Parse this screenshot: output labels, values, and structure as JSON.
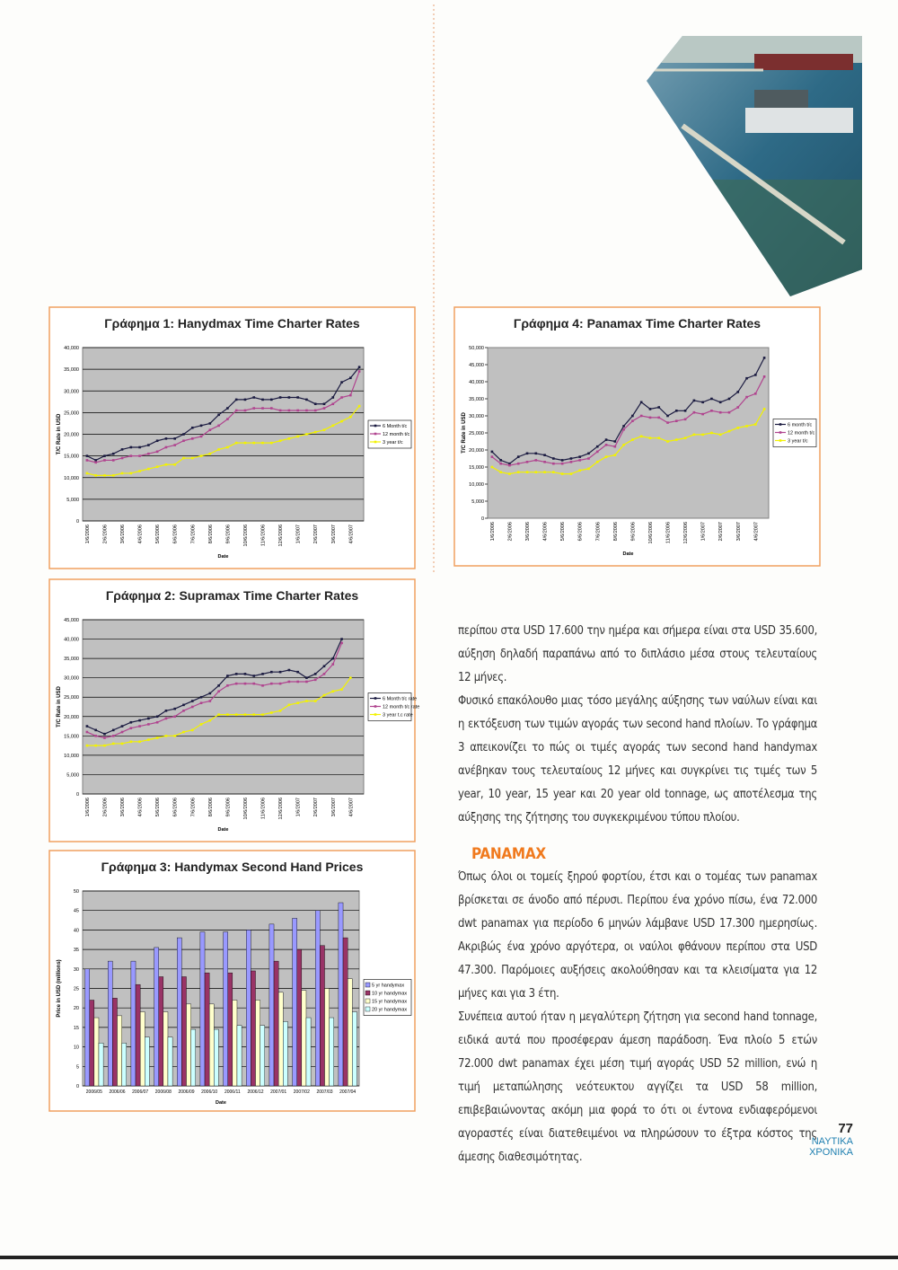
{
  "chart_data": [
    {
      "type": "line",
      "title": "Γράφημα 1: Hanydmax Time Charter Rates",
      "x_label": "Date",
      "y_label": "T/C Rate in USD",
      "legend": "right",
      "grid": true,
      "categories": [
        "1/6/2006",
        null,
        "2/6/2006",
        null,
        "3/6/2006",
        null,
        "4/6/2006",
        null,
        "5/6/2006",
        null,
        "6/6/2006",
        null,
        "7/6/2006",
        null,
        "8/6/2006",
        null,
        "9/6/2006",
        null,
        "10/6/2006",
        null,
        "11/6/2006",
        null,
        "12/6/2006",
        null,
        "1/6/2007",
        null,
        "2/6/2007",
        null,
        "3/6/2007",
        null,
        "4/6/2007",
        null
      ],
      "ylim": [
        0,
        40000
      ],
      "yticks": [
        0,
        {
          "value": 5000,
          "label": "5,000"
        },
        {
          "value": 10000,
          "label": "10,000"
        },
        {
          "value": 15000,
          "label": "15,000"
        },
        {
          "value": 20000,
          "label": "20,000"
        },
        {
          "value": 25000,
          "label": "25,000"
        },
        {
          "value": 30000,
          "label": "30,000"
        },
        {
          "value": 35000,
          "label": "35,000"
        },
        {
          "value": 40000,
          "label": "40,000"
        }
      ],
      "series": [
        {
          "name": "6 Month t/c",
          "color": "#1a1a40",
          "values": [
            15000,
            14000,
            15000,
            15500,
            16500,
            17000,
            17000,
            17500,
            18500,
            19000,
            19000,
            20000,
            21500,
            22000,
            22500,
            24500,
            26000,
            28000,
            28000,
            28500,
            28000,
            28000,
            28500,
            28500,
            28500,
            28000,
            27000,
            27000,
            28500,
            32000,
            33000,
            35500
          ]
        },
        {
          "name": "12 month t/c",
          "color": "#b0448f",
          "values": [
            14000,
            13500,
            14000,
            14000,
            14500,
            15000,
            15000,
            15500,
            16000,
            17000,
            17500,
            18500,
            19000,
            19500,
            21000,
            22000,
            23500,
            25500,
            25500,
            26000,
            26000,
            26000,
            25500,
            25500,
            25500,
            25500,
            25500,
            26000,
            27000,
            28500,
            29000,
            34500
          ]
        },
        {
          "name": "3 year t/c",
          "color": "#f2f200",
          "values": [
            11000,
            10500,
            10500,
            10500,
            11000,
            11000,
            11500,
            12000,
            12500,
            13000,
            13000,
            14500,
            14500,
            15000,
            15500,
            16500,
            17000,
            18000,
            18000,
            18000,
            18000,
            18000,
            18500,
            19000,
            19500,
            20000,
            20500,
            21000,
            22000,
            23000,
            24000,
            26500
          ]
        }
      ]
    },
    {
      "type": "line",
      "title": "Γράφημα 2: Supramax Time Charter Rates",
      "x_label": "Date",
      "y_label": "T/C Rate in USD",
      "legend": "right",
      "grid": true,
      "categories": [
        "1/6/2006",
        null,
        "2/6/2006",
        null,
        "3/6/2006",
        null,
        "4/6/2006",
        null,
        "5/6/2006",
        null,
        "6/6/2006",
        null,
        "7/6/2006",
        null,
        "8/6/2006",
        null,
        "9/6/2006",
        null,
        "10/6/2006",
        null,
        "11/6/2006",
        null,
        "12/6/2006",
        null,
        "1/6/2007",
        null,
        "2/6/2007",
        null,
        "3/6/2007",
        null,
        "4/6/2007",
        null
      ],
      "ylim": [
        0,
        45000
      ],
      "yticks": [
        0,
        {
          "value": 5000,
          "label": "5,000"
        },
        {
          "value": 10000,
          "label": "10,000"
        },
        {
          "value": 15000,
          "label": "15,000"
        },
        {
          "value": 20000,
          "label": "20,000"
        },
        {
          "value": 25000,
          "label": "25,000"
        },
        {
          "value": 30000,
          "label": "30,000"
        },
        {
          "value": 35000,
          "label": "35,000"
        },
        {
          "value": 40000,
          "label": "40,000"
        },
        {
          "value": 45000,
          "label": "45,000"
        }
      ],
      "series": [
        {
          "name": "6 Month t/c rate",
          "color": "#1a1a40",
          "values": [
            17500,
            16500,
            15500,
            16500,
            17500,
            18500,
            19000,
            19500,
            20000,
            21500,
            22000,
            23000,
            24000,
            25000,
            26000,
            28000,
            30500,
            31000,
            31000,
            30500,
            31000,
            31500,
            31500,
            32000,
            31500,
            30000,
            31000,
            33000,
            35000,
            40000,
            null,
            null
          ]
        },
        {
          "name": "12 month t/c rate",
          "color": "#b0448f",
          "values": [
            16000,
            15000,
            14500,
            15000,
            16000,
            17000,
            17500,
            18000,
            18500,
            19500,
            20000,
            21500,
            22500,
            23500,
            24000,
            26500,
            28000,
            28500,
            28500,
            28500,
            28000,
            28500,
            28500,
            29000,
            29000,
            29000,
            29500,
            31000,
            33500,
            39000,
            null,
            null
          ]
        },
        {
          "name": "3 year t.c rate",
          "color": "#f2f200",
          "values": [
            12500,
            12500,
            12500,
            13000,
            13000,
            13500,
            13500,
            14000,
            14500,
            15000,
            15000,
            16000,
            16500,
            18000,
            19000,
            20500,
            20500,
            20500,
            20500,
            20500,
            20500,
            21000,
            21500,
            23000,
            23500,
            24000,
            24000,
            25500,
            26500,
            27000,
            30000,
            null
          ]
        }
      ]
    },
    {
      "type": "bar",
      "title": "Γράφημα 3: Handymax Second Hand Prices",
      "x_label": "Date",
      "y_label": "Price in USD (millions)",
      "legend": "right",
      "grid": true,
      "categories": [
        "2006/05",
        "2006/06",
        "2006/07",
        "2006/08",
        "2006/09",
        "2006/10",
        "2006/11",
        "2006/12",
        "2007/01",
        "2007/02",
        "2007/03",
        "2007/04"
      ],
      "ylim": [
        0,
        50
      ],
      "yticks": [
        0,
        5,
        10,
        15,
        20,
        25,
        30,
        35,
        40,
        45,
        50
      ],
      "series": [
        {
          "name": "5 yr handymax",
          "color": "#9999ff",
          "values": [
            30,
            32,
            32,
            35.5,
            38,
            39.5,
            39.5,
            40,
            41.5,
            43,
            45,
            47
          ]
        },
        {
          "name": "10 yr handymax",
          "color": "#993366",
          "values": [
            22,
            22.5,
            26,
            28,
            28,
            29,
            29,
            29.5,
            32,
            35,
            36,
            38
          ]
        },
        {
          "name": "15 yr handymax",
          "color": "#ffffcc",
          "values": [
            17.5,
            18,
            19,
            19,
            21,
            21,
            22,
            22,
            24,
            24.5,
            25,
            27.5
          ]
        },
        {
          "name": "20 yr handymax",
          "color": "#ccffff",
          "values": [
            11,
            11,
            12.5,
            12.5,
            14.5,
            14.5,
            15.5,
            15.5,
            16.5,
            17.5,
            17.5,
            19
          ]
        }
      ]
    },
    {
      "type": "line",
      "title": "Γράφημα 4: Panamax Time Charter Rates",
      "x_label": "Date",
      "y_label": "T/C Rate in USD",
      "legend": "right",
      "grid": false,
      "categories": [
        "1/6/2006",
        null,
        "2/6/2006",
        null,
        "3/6/2006",
        null,
        "4/6/2006",
        null,
        "5/6/2006",
        null,
        "6/6/2006",
        null,
        "7/6/2006",
        null,
        "8/6/2006",
        null,
        "9/6/2006",
        null,
        "10/6/2006",
        null,
        "11/6/2006",
        null,
        "12/6/2006",
        null,
        "1/6/2007",
        null,
        "2/6/2007",
        null,
        "3/6/2007",
        null,
        "4/6/2007",
        null
      ],
      "ylim": [
        0,
        50000
      ],
      "yticks": [
        0,
        {
          "value": 5000,
          "label": "5,000"
        },
        {
          "value": 10000,
          "label": "10,000"
        },
        {
          "value": 15000,
          "label": "15,000"
        },
        {
          "value": 20000,
          "label": "20,000"
        },
        {
          "value": 25000,
          "label": "25,000"
        },
        {
          "value": 30000,
          "label": "30,000"
        },
        {
          "value": 35000,
          "label": "35,000"
        },
        {
          "value": 40000,
          "label": "40,000"
        },
        {
          "value": 45000,
          "label": "45,000"
        },
        {
          "value": 50000,
          "label": "50,000"
        }
      ],
      "series": [
        {
          "name": "6 month t/c",
          "color": "#1a1a40",
          "values": [
            19500,
            17000,
            16000,
            18000,
            19000,
            19000,
            18500,
            17500,
            17000,
            17500,
            18000,
            19000,
            21000,
            23000,
            22500,
            27000,
            30000,
            34000,
            32000,
            32500,
            30000,
            31500,
            31500,
            34500,
            34000,
            35000,
            34000,
            35000,
            37000,
            41000,
            42000,
            47000
          ]
        },
        {
          "name": "12 month t/c",
          "color": "#b0448f",
          "values": [
            18000,
            16000,
            15500,
            16000,
            16500,
            17000,
            16500,
            16000,
            16000,
            16500,
            17000,
            17500,
            19500,
            21500,
            21000,
            26000,
            28500,
            30000,
            29500,
            29500,
            28000,
            28500,
            29000,
            31000,
            30500,
            31500,
            31000,
            31000,
            32500,
            35500,
            36500,
            41500
          ]
        },
        {
          "name": "3 year t/c",
          "color": "#f2f200",
          "values": [
            15000,
            13500,
            13000,
            13500,
            13500,
            13500,
            13500,
            13500,
            13000,
            13000,
            14000,
            14500,
            16500,
            18000,
            18500,
            21500,
            23000,
            24000,
            23500,
            23500,
            22500,
            23000,
            23500,
            24500,
            24500,
            25000,
            24500,
            25500,
            26500,
            27000,
            27500,
            32000
          ]
        }
      ]
    }
  ],
  "article": {
    "paragraphs": [
      "περίπου στα USD 17.600 την ημέρα και σήμερα είναι στα USD 35.600, αύξηση δηλαδή παραπάνω από το διπλάσιο μέσα στους τελευταίους 12 μήνες.",
      "Φυσικό επακόλουθο μιας τόσο μεγάλης αύξησης των ναύλων είναι και η εκτόξευση των τιμών αγοράς των second hand πλοίων. Το γράφημα 3 απεικονίζει το πώς οι τιμές αγοράς των second hand handymax ανέβηκαν τους τελευταίους 12 μήνες και συγκρίνει τις τιμές των 5 year, 10 year, 15 year και 20 year old tonnage, ως αποτέλεσμα της αύξησης της ζήτησης του συγκεκριμένου τύπου πλοίου."
    ],
    "heading": "PANAMAX",
    "paragraphs2": [
      "Όπως όλοι οι τομείς ξηρού φορτίου, έτσι και ο τομέας των panamax βρίσκεται σε άνοδο από πέρυσι. Περίπου ένα χρόνο πίσω, ένα 72.000 dwt panamax για περίοδο 6 μηνών λάμβανε USD 17.300 ημερησίως. Ακριβώς ένα χρόνο αργότερα, οι ναύλοι φθάνουν περίπου στα USD 47.300. Παρόμοιες αυξήσεις ακολούθησαν και τα κλεισίματα για 12 μήνες και για 3 έτη.",
      "Συνέπεια αυτού ήταν η μεγαλύτερη ζήτηση για second hand tonnage, ειδικά αυτά που προσέφεραν άμεση παράδοση. Ένα πλοίο 5 ετών 72.000 dwt panamax έχει μέση τιμή αγοράς USD 52 million, ενώ η τιμή μεταπώλησης νεότευκτου αγγίζει τα USD 58 million, επιβεβαιώνοντας ακόμη μια φορά το ότι οι έντονα ενδιαφερόμενοι αγοραστές είναι διατεθειμένοι να πληρώσουν το έξτρα κόστος της άμεσης διαθεσιμότητας."
    ]
  },
  "footer": {
    "page_number": "77",
    "brand_line1": "ΝΑΥΤΙΚΑ",
    "brand_line2": "ΧΡΟΝΙΚΑ"
  }
}
